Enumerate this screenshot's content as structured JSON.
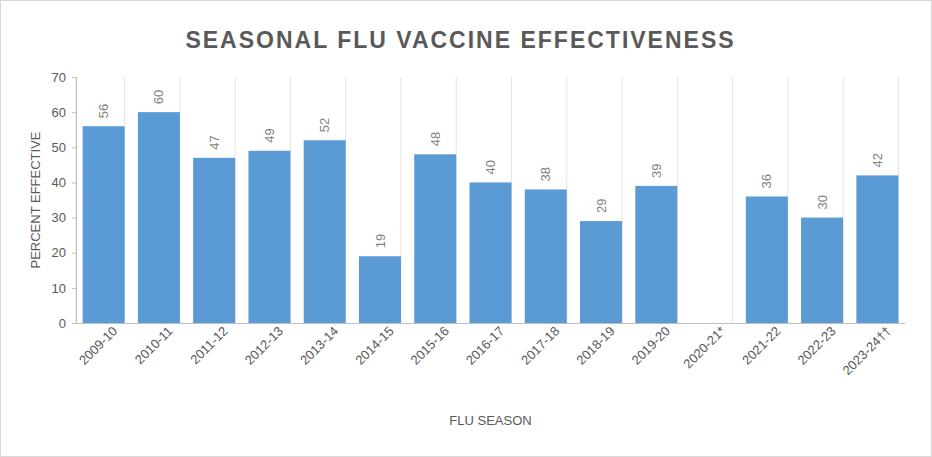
{
  "chart_data": {
    "type": "bar",
    "title": "SEASONAL FLU VACCINE EFFECTIVENESS",
    "x_label": "FLU SEASON",
    "y_label": "PERCENT EFFECTIVE",
    "categories": [
      "2009-10",
      "2010-11",
      "2011-12",
      "2012-13",
      "2013-14",
      "2014-15",
      "2015-16",
      "2016-17",
      "2017-18",
      "2018-19",
      "2019-20",
      "2020-21*",
      "2021-22",
      "2022-23",
      "2023-24††"
    ],
    "values": [
      56,
      60,
      47,
      49,
      52,
      19,
      48,
      40,
      38,
      29,
      39,
      null,
      36,
      30,
      42
    ],
    "color": "#5b9bd5",
    "ylim": [
      0,
      70
    ],
    "yticks": [
      0,
      10,
      20,
      30,
      40,
      50,
      60,
      70
    ],
    "data_labels": true
  }
}
